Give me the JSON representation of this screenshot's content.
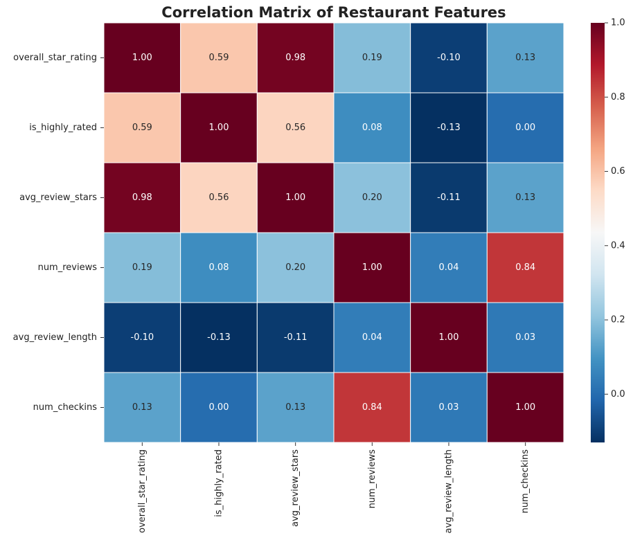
{
  "chart_data": {
    "type": "heatmap",
    "title": "Correlation Matrix of Restaurant Features",
    "x_categories": [
      "overall_star_rating",
      "is_highly_rated",
      "avg_review_stars",
      "num_reviews",
      "avg_review_length",
      "num_checkins"
    ],
    "y_categories": [
      "overall_star_rating",
      "is_highly_rated",
      "avg_review_stars",
      "num_reviews",
      "avg_review_length",
      "num_checkins"
    ],
    "values": [
      [
        1,
        0.59,
        0.98,
        0.19,
        -0.1,
        0.13
      ],
      [
        0.59,
        1,
        0.56,
        0.08,
        -0.13,
        0
      ],
      [
        0.98,
        0.56,
        1,
        0.2,
        -0.11,
        0.13
      ],
      [
        0.19,
        0.08,
        0.2,
        1,
        0.04,
        0.84
      ],
      [
        -0.1,
        -0.13,
        -0.11,
        0.04,
        1,
        0.03
      ],
      [
        0.13,
        0,
        0.13,
        0.84,
        0.03,
        1
      ]
    ],
    "value_labels": [
      [
        "1.00",
        "0.59",
        "0.98",
        "0.19",
        "-0.10",
        "0.13"
      ],
      [
        "0.59",
        "1.00",
        "0.56",
        "0.08",
        "-0.13",
        "0.00"
      ],
      [
        "0.98",
        "0.56",
        "1.00",
        "0.20",
        "-0.11",
        "0.13"
      ],
      [
        "0.19",
        "0.08",
        "0.20",
        "1.00",
        "0.04",
        "0.84"
      ],
      [
        "-0.10",
        "-0.13",
        "-0.11",
        "0.04",
        "1.00",
        "0.03"
      ],
      [
        "0.13",
        "0.00",
        "0.13",
        "0.84",
        "0.03",
        "1.00"
      ]
    ],
    "colormap": "RdBu_r",
    "clim": [
      -0.13,
      1
    ],
    "cticks": [
      {
        "value": 0,
        "label": "0.0"
      },
      0.2,
      0.4,
      0.6,
      0.8,
      {
        "value": 1,
        "label": "1.0"
      }
    ]
  }
}
